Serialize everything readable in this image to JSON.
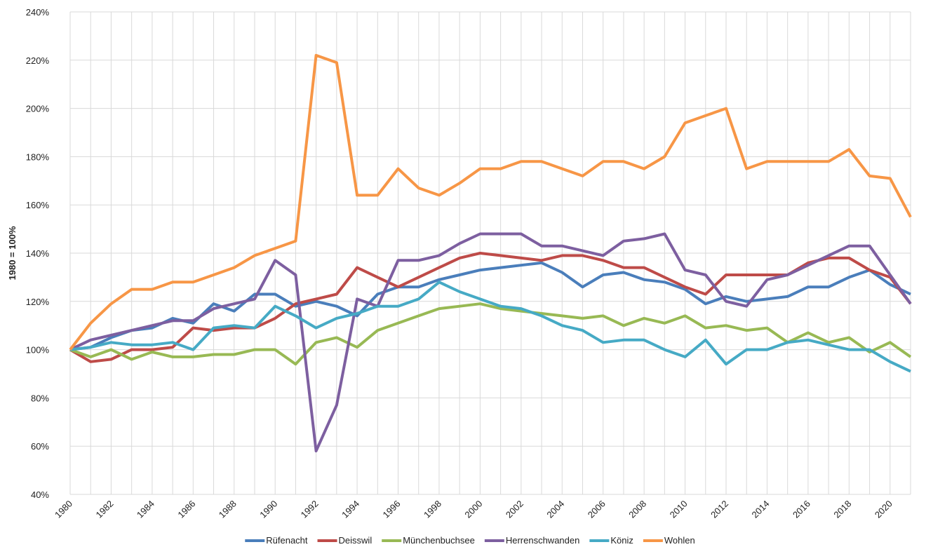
{
  "chart_data": {
    "type": "line",
    "y_label": "1980 = 100%",
    "categories": [
      "1980",
      null,
      "1982",
      null,
      "1984",
      null,
      "1986",
      null,
      "1988",
      null,
      "1990",
      null,
      "1992",
      null,
      "1994",
      null,
      "1996",
      null,
      "1998",
      null,
      "2000",
      null,
      "2002",
      null,
      "2004",
      null,
      "2006",
      null,
      "2008",
      null,
      "2010",
      null,
      "2012",
      null,
      "2014",
      null,
      "2016",
      null,
      "2018",
      null,
      "2020",
      null
    ],
    "ylim": [
      40,
      240
    ],
    "yticks": [
      {
        "value": 40,
        "label": "40%"
      },
      {
        "value": 60,
        "label": "60%"
      },
      {
        "value": 80,
        "label": "80%"
      },
      {
        "value": 100,
        "label": "100%"
      },
      {
        "value": 120,
        "label": "120%"
      },
      {
        "value": 140,
        "label": "140%"
      },
      {
        "value": 160,
        "label": "160%"
      },
      {
        "value": 180,
        "label": "180%"
      },
      {
        "value": 200,
        "label": "200%"
      },
      {
        "value": 220,
        "label": "220%"
      },
      {
        "value": 240,
        "label": "240%"
      }
    ],
    "grid": true,
    "legend": "bottom",
    "series": [
      {
        "name": "Rüfenacht",
        "color": "#4a7ebb",
        "values": [
          100,
          101,
          105,
          108,
          109,
          113,
          111,
          119,
          116,
          123,
          123,
          118,
          120,
          118,
          114,
          123,
          126,
          126,
          129,
          131,
          133,
          134,
          135,
          136,
          132,
          126,
          131,
          132,
          129,
          128,
          125,
          119,
          122,
          120,
          121,
          122,
          126,
          126,
          130,
          133,
          127,
          123
        ]
      },
      {
        "name": "Deisswil",
        "color": "#be4b48",
        "values": [
          100,
          95,
          96,
          100,
          100,
          101,
          109,
          108,
          109,
          109,
          113,
          119,
          121,
          123,
          134,
          130,
          126,
          130,
          134,
          138,
          140,
          139,
          138,
          137,
          139,
          139,
          137,
          134,
          134,
          130,
          126,
          123,
          131,
          131,
          131,
          131,
          136,
          138,
          138,
          133,
          130,
          119
        ]
      },
      {
        "name": "Münchenbuchsee",
        "color": "#98b954",
        "values": [
          100,
          97,
          100,
          96,
          99,
          97,
          97,
          98,
          98,
          100,
          100,
          94,
          103,
          105,
          101,
          108,
          111,
          114,
          117,
          118,
          119,
          117,
          116,
          115,
          114,
          113,
          114,
          110,
          113,
          111,
          114,
          109,
          110,
          108,
          109,
          103,
          107,
          103,
          105,
          99,
          103,
          97
        ]
      },
      {
        "name": "Herrenschwanden",
        "color": "#7d5fa0",
        "values": [
          100,
          104,
          106,
          108,
          110,
          112,
          112,
          117,
          119,
          121,
          137,
          131,
          58,
          77,
          121,
          118,
          137,
          137,
          139,
          144,
          148,
          148,
          148,
          143,
          143,
          141,
          139,
          145,
          146,
          148,
          133,
          131,
          120,
          118,
          129,
          131,
          135,
          139,
          143,
          143,
          131,
          119
        ]
      },
      {
        "name": "Köniz",
        "color": "#46aac5",
        "values": [
          100,
          101,
          103,
          102,
          102,
          103,
          100,
          109,
          110,
          109,
          118,
          114,
          109,
          113,
          115,
          118,
          118,
          121,
          128,
          124,
          121,
          118,
          117,
          114,
          110,
          108,
          103,
          104,
          104,
          100,
          97,
          104,
          94,
          100,
          100,
          103,
          104,
          102,
          100,
          100,
          95,
          91
        ]
      },
      {
        "name": "Wohlen",
        "color": "#f79646",
        "values": [
          100,
          111,
          119,
          125,
          125,
          128,
          128,
          131,
          134,
          139,
          142,
          145,
          222,
          219,
          164,
          164,
          175,
          167,
          164,
          169,
          175,
          175,
          178,
          178,
          175,
          172,
          178,
          178,
          175,
          180,
          194,
          197,
          200,
          175,
          178,
          178,
          178,
          178,
          183,
          172,
          171,
          155
        ]
      }
    ]
  }
}
